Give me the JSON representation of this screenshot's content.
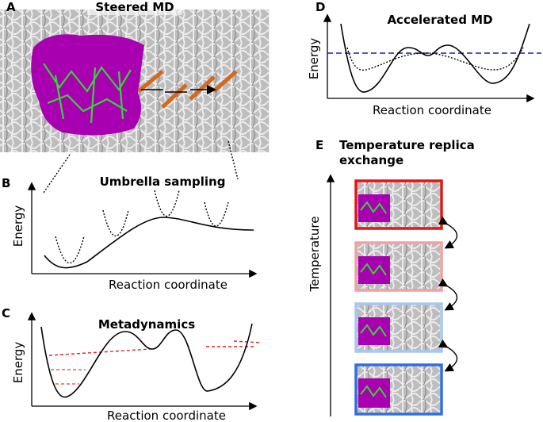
{
  "panels": [
    {
      "letter": "A",
      "title": "Steered MD"
    },
    {
      "letter": "B",
      "title": "Umbrella sampling",
      "y_label": "Energy",
      "x_label": "Reaction coordinate"
    },
    {
      "letter": "C",
      "title": "Metadynamics",
      "y_label": "Energy",
      "x_label": "Reaction coordinate"
    },
    {
      "letter": "D",
      "title": "Accelerated MD",
      "y_label": "Energy",
      "x_label": "Reaction coordinate"
    },
    {
      "letter": "E",
      "title_lines": [
        "Temperature replica",
        "exchange"
      ],
      "y_label": "Temperature"
    }
  ]
}
